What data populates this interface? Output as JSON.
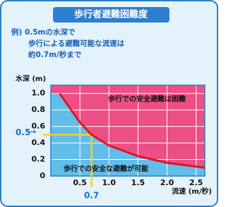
{
  "chart_data": {
    "type": "line",
    "title": "歩行者避難困難度",
    "example_lines": [
      "例) 0.5mの水深で",
      "歩行による避難可能な流速は",
      "約0.7m/秒まで"
    ],
    "y_label": "水深 (m)",
    "x_label": "流速 (m/秒)",
    "annotations": {
      "upper": "歩行での安全避難は困難",
      "lower": "歩行での安全な避難が可能"
    },
    "marker": {
      "x": 0.7,
      "y": 0.5
    },
    "x": [
      0.15,
      0.3,
      0.5,
      0.7,
      1.0,
      1.5,
      2.0,
      2.65
    ],
    "series": [
      {
        "color": "#d91a1a",
        "values": [
          1.0,
          0.85,
          0.65,
          0.5,
          0.37,
          0.24,
          0.16,
          0.1
        ]
      }
    ],
    "xlim": [
      0,
      2.65
    ],
    "ylim": [
      0,
      1.1
    ],
    "xticks": [
      0.5,
      {
        "value": 1,
        "label": "1.0"
      },
      1.5,
      {
        "value": 2,
        "label": "2.0"
      },
      2.5
    ],
    "yticks": [
      0,
      0.2,
      0.4,
      0.6,
      0.8,
      {
        "value": 1,
        "label": "1.0"
      }
    ],
    "grid": true,
    "colors": {
      "danger": "#ec4f86",
      "safe": "#62bdea",
      "grid": "#ffffff",
      "marker": "#f6d21e"
    }
  }
}
